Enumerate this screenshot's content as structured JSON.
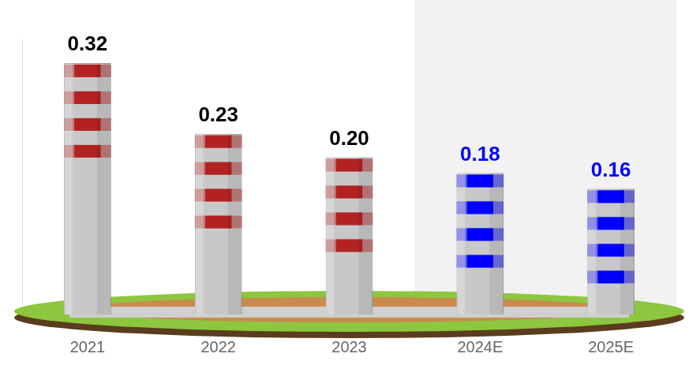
{
  "chart_data": {
    "type": "bar",
    "categories": [
      "2021",
      "2022",
      "2023",
      "2024E",
      "2025E"
    ],
    "values": [
      0.32,
      0.23,
      0.2,
      0.18,
      0.16
    ],
    "value_labels": [
      "0.32",
      "0.23",
      "0.20",
      "0.18",
      "0.16"
    ],
    "colors": [
      "#b22222",
      "#b22222",
      "#b22222",
      "#0000ff",
      "#0000ff"
    ],
    "ylim": [
      0,
      0.35
    ],
    "data_labels": true,
    "tick_labels": "x",
    "grid": false
  }
}
